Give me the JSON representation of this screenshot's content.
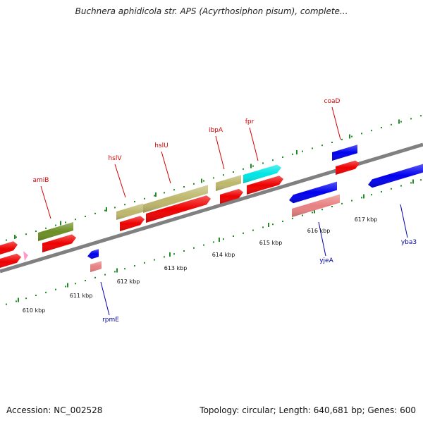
{
  "title": "Buchnera aphidicola str. APS (Acyrthosiphon pisum), complete...",
  "footer": {
    "accession": "Accession: NC_002528",
    "summary": "Topology: circular; Length: 640,681 bp; Genes: 600"
  },
  "scale": {
    "ticks": [
      {
        "label": "610 kbp"
      },
      {
        "label": "611 kbp"
      },
      {
        "label": "612 kbp"
      },
      {
        "label": "613 kbp"
      },
      {
        "label": "614 kbp"
      },
      {
        "label": "615 kbp"
      },
      {
        "label": "616 kbp"
      },
      {
        "label": "617 kbp"
      }
    ]
  },
  "genes": {
    "top": [
      {
        "name": "amiB",
        "color": "#6b8e23"
      },
      {
        "name": "hslV",
        "color": "#bdb76b"
      },
      {
        "name": "hslU",
        "color": "#bdb76b"
      },
      {
        "name": "ibpA",
        "color": "#bdb76b"
      },
      {
        "name": "fpr",
        "color": "#00e5e5"
      },
      {
        "name": "coaD",
        "color": "#0000ee"
      }
    ],
    "bottom": [
      {
        "name": "rpmE",
        "color": "#e88080"
      },
      {
        "name": "yjeA",
        "color": "#e88080"
      },
      {
        "name": "yba3",
        "color": "#0000ee"
      }
    ]
  },
  "colors": {
    "backbone": "#808080",
    "cds": "#ee0000",
    "top_dots": "#228b22",
    "bottom_dots": "#228b22"
  }
}
